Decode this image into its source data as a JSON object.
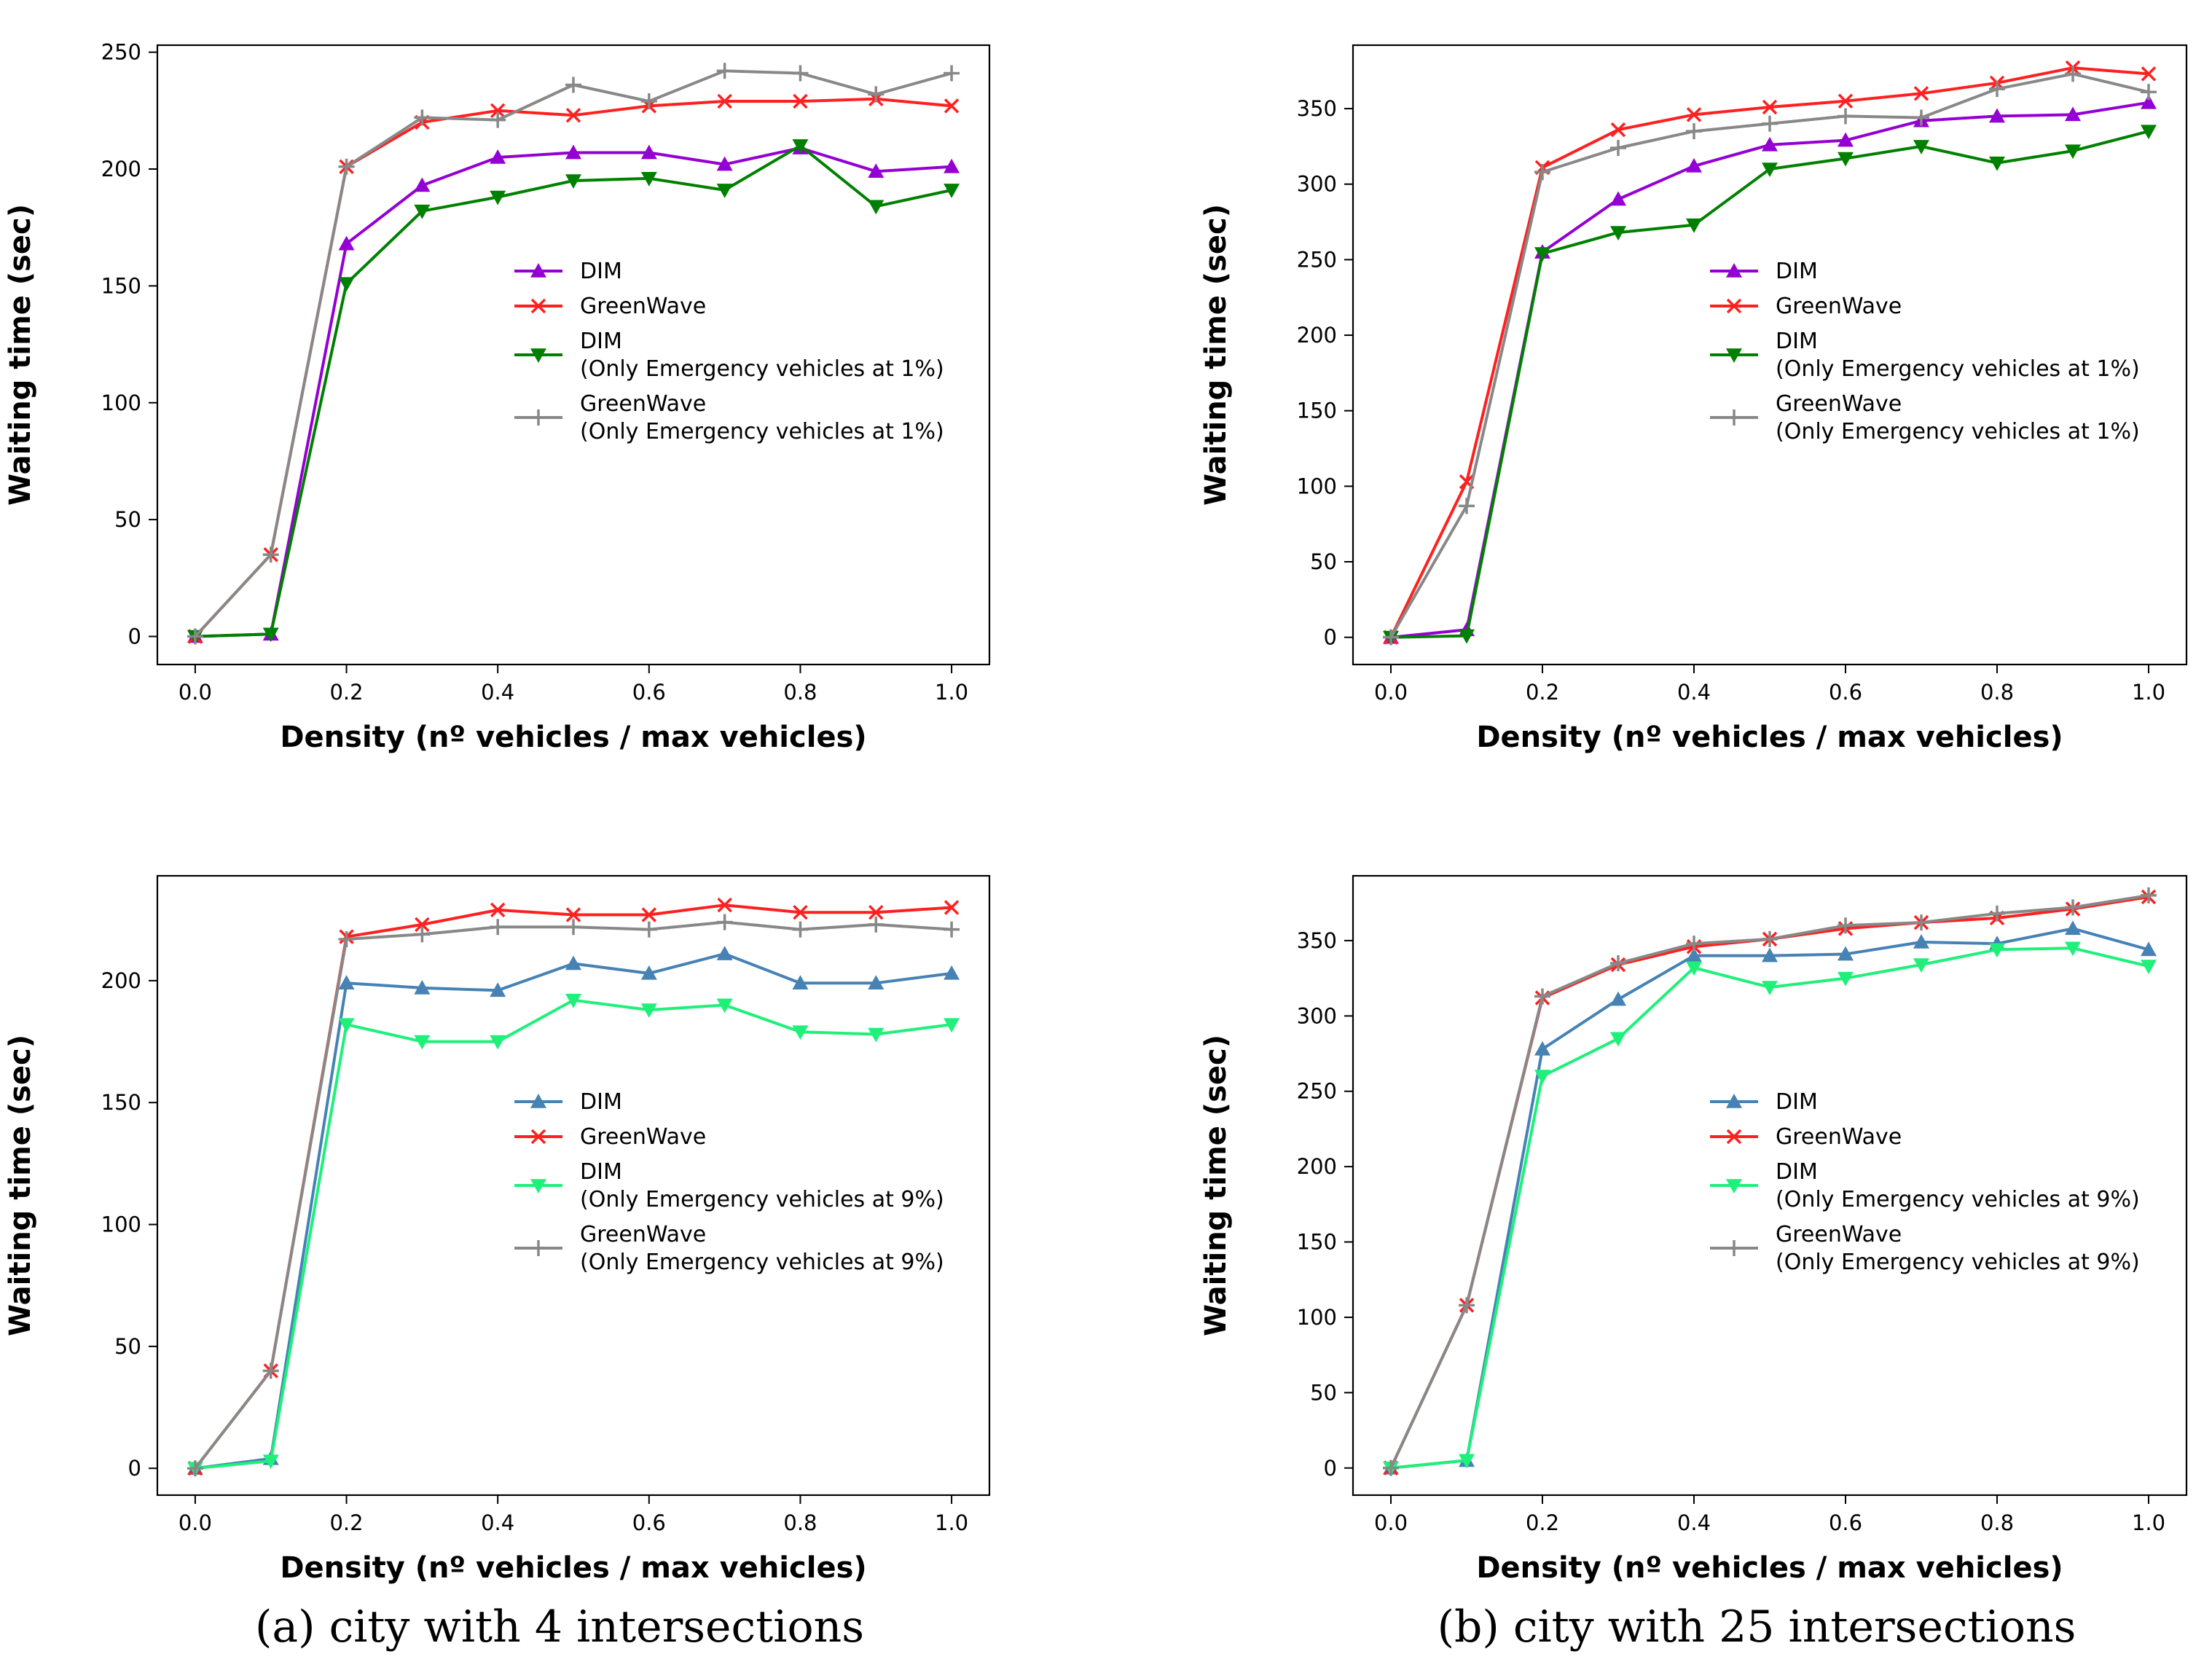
{
  "colors": {
    "dim_1": "#9400D3",
    "gw": "#FF2020",
    "dim_em_1": "#008000",
    "gw_em": "#888888",
    "dim_9": "#4682B4",
    "dim_em_9": "#1EF07A"
  },
  "captions": {
    "a": "(a)  city with 4 intersections",
    "b": "(b)  city with 25 intersections"
  },
  "chart_data": [
    {
      "id": "a1",
      "type": "line",
      "xlabel": "Density (nº vehicles / max vehicles)",
      "ylabel": "Waiting time (sec)",
      "xlim": [
        -0.05,
        1.05
      ],
      "ylim": [
        -12,
        253
      ],
      "xticks": [
        "0.0",
        "0.2",
        "0.4",
        "0.6",
        "0.8",
        "1.0"
      ],
      "yticks": [
        0,
        50,
        100,
        150,
        200,
        250
      ],
      "legend_placement": "center-right",
      "x": [
        0.0,
        0.1,
        0.2,
        0.3,
        0.4,
        0.5,
        0.6,
        0.7,
        0.8,
        0.9,
        1.0
      ],
      "series": [
        {
          "name": "DIM",
          "color_key": "dim_1",
          "marker": "triangle-up",
          "values": [
            0,
            1,
            168,
            193,
            205,
            207,
            207,
            202,
            209,
            199,
            201
          ]
        },
        {
          "name": "GreenWave",
          "color_key": "gw",
          "marker": "x",
          "values": [
            0,
            35,
            201,
            220,
            225,
            223,
            227,
            229,
            229,
            230,
            227
          ]
        },
        {
          "name": "DIM\n(Only Emergency vehicles at 1%)",
          "color_key": "dim_em_1",
          "marker": "triangle-down",
          "values": [
            0,
            1,
            151,
            182,
            188,
            195,
            196,
            191,
            210,
            184,
            191
          ]
        },
        {
          "name": "GreenWave\n(Only Emergency vehicles at 1%)",
          "color_key": "gw_em",
          "marker": "plus",
          "values": [
            0,
            35,
            201,
            222,
            221,
            236,
            229,
            242,
            241,
            232,
            241
          ]
        }
      ]
    },
    {
      "id": "b1",
      "type": "line",
      "xlabel": "Density (nº vehicles / max vehicles)",
      "ylabel": "Waiting time (sec)",
      "xlim": [
        -0.05,
        1.05
      ],
      "ylim": [
        -18,
        392
      ],
      "xticks": [
        "0.0",
        "0.2",
        "0.4",
        "0.6",
        "0.8",
        "1.0"
      ],
      "yticks": [
        0,
        50,
        100,
        150,
        200,
        250,
        300,
        350
      ],
      "legend_placement": "center-right",
      "x": [
        0.0,
        0.1,
        0.2,
        0.3,
        0.4,
        0.5,
        0.6,
        0.7,
        0.8,
        0.9,
        1.0
      ],
      "series": [
        {
          "name": "DIM",
          "color_key": "dim_1",
          "marker": "triangle-up",
          "values": [
            0,
            5,
            255,
            290,
            312,
            326,
            329,
            342,
            345,
            346,
            354
          ]
        },
        {
          "name": "GreenWave",
          "color_key": "gw",
          "marker": "x",
          "values": [
            0,
            103,
            311,
            336,
            346,
            351,
            355,
            360,
            367,
            377,
            373
          ]
        },
        {
          "name": "DIM\n(Only Emergency vehicles at 1%)",
          "color_key": "dim_em_1",
          "marker": "triangle-down",
          "values": [
            0,
            1,
            254,
            268,
            273,
            310,
            317,
            325,
            314,
            322,
            335
          ]
        },
        {
          "name": "GreenWave\n(Only Emergency vehicles at 1%)",
          "color_key": "gw_em",
          "marker": "plus",
          "values": [
            0,
            87,
            308,
            324,
            335,
            340,
            345,
            344,
            363,
            373,
            361
          ]
        }
      ]
    },
    {
      "id": "a2",
      "type": "line",
      "xlabel": "Density (nº vehicles / max vehicles)",
      "ylabel": "Waiting time (sec)",
      "xlim": [
        -0.05,
        1.05
      ],
      "ylim": [
        -11,
        243
      ],
      "xticks": [
        "0.0",
        "0.2",
        "0.4",
        "0.6",
        "0.8",
        "1.0"
      ],
      "yticks": [
        0,
        50,
        100,
        150,
        200
      ],
      "legend_placement": "center-right",
      "x": [
        0.0,
        0.1,
        0.2,
        0.3,
        0.4,
        0.5,
        0.6,
        0.7,
        0.8,
        0.9,
        1.0
      ],
      "series": [
        {
          "name": "DIM",
          "color_key": "dim_9",
          "marker": "triangle-up",
          "values": [
            0,
            4,
            199,
            197,
            196,
            207,
            203,
            211,
            199,
            199,
            203
          ]
        },
        {
          "name": "GreenWave",
          "color_key": "gw",
          "marker": "x",
          "values": [
            0,
            40,
            218,
            223,
            229,
            227,
            227,
            231,
            228,
            228,
            230
          ]
        },
        {
          "name": "DIM\n(Only Emergency vehicles at 9%)",
          "color_key": "dim_em_9",
          "marker": "triangle-down",
          "values": [
            0,
            3,
            182,
            175,
            175,
            192,
            188,
            190,
            179,
            178,
            182
          ]
        },
        {
          "name": "GreenWave\n(Only Emergency vehicles at 9%)",
          "color_key": "gw_em",
          "marker": "plus",
          "values": [
            0,
            40,
            217,
            219,
            222,
            222,
            221,
            224,
            221,
            223,
            221
          ]
        }
      ]
    },
    {
      "id": "b2",
      "type": "line",
      "xlabel": "Density (nº vehicles / max vehicles)",
      "ylabel": "Waiting time (sec)",
      "xlim": [
        -0.05,
        1.05
      ],
      "ylim": [
        -18,
        393
      ],
      "xticks": [
        "0.0",
        "0.2",
        "0.4",
        "0.6",
        "0.8",
        "1.0"
      ],
      "yticks": [
        0,
        50,
        100,
        150,
        200,
        250,
        300,
        350
      ],
      "legend_placement": "center-right",
      "x": [
        0.0,
        0.1,
        0.2,
        0.3,
        0.4,
        0.5,
        0.6,
        0.7,
        0.8,
        0.9,
        1.0
      ],
      "series": [
        {
          "name": "DIM",
          "color_key": "dim_9",
          "marker": "triangle-up",
          "values": [
            0,
            5,
            278,
            311,
            340,
            340,
            341,
            349,
            348,
            358,
            344
          ]
        },
        {
          "name": "GreenWave",
          "color_key": "gw",
          "marker": "x",
          "values": [
            0,
            108,
            312,
            334,
            346,
            351,
            358,
            362,
            365,
            371,
            379
          ]
        },
        {
          "name": "DIM\n(Only Emergency vehicles at 9%)",
          "color_key": "dim_em_9",
          "marker": "triangle-down",
          "values": [
            0,
            5,
            260,
            285,
            332,
            319,
            325,
            334,
            344,
            345,
            333
          ]
        },
        {
          "name": "GreenWave\n(Only Emergency vehicles at 9%)",
          "color_key": "gw_em",
          "marker": "plus",
          "values": [
            0,
            108,
            313,
            335,
            348,
            351,
            360,
            362,
            368,
            372,
            380
          ]
        }
      ]
    }
  ]
}
